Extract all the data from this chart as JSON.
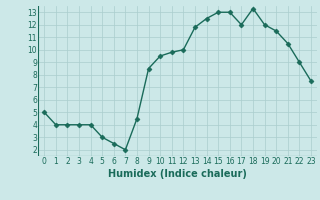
{
  "x": [
    0,
    1,
    2,
    3,
    4,
    5,
    6,
    7,
    8,
    9,
    10,
    11,
    12,
    13,
    14,
    15,
    16,
    17,
    18,
    19,
    20,
    21,
    22,
    23
  ],
  "y": [
    5,
    4,
    4,
    4,
    4,
    3,
    2.5,
    2,
    4.5,
    8.5,
    9.5,
    9.8,
    10,
    11.8,
    12.5,
    13,
    13,
    12,
    13.3,
    12,
    11.5,
    10.5,
    9,
    7.5
  ],
  "line_color": "#1a6b5a",
  "marker": "D",
  "marker_size": 2.5,
  "bg_color": "#cce8e8",
  "grid_color": "#aacece",
  "xlabel": "Humidex (Indice chaleur)",
  "xlim": [
    -0.5,
    23.5
  ],
  "ylim": [
    1.5,
    13.5
  ],
  "yticks": [
    2,
    3,
    4,
    5,
    6,
    7,
    8,
    9,
    10,
    11,
    12,
    13
  ],
  "xticks": [
    0,
    1,
    2,
    3,
    4,
    5,
    6,
    7,
    8,
    9,
    10,
    11,
    12,
    13,
    14,
    15,
    16,
    17,
    18,
    19,
    20,
    21,
    22,
    23
  ],
  "tick_fontsize": 5.5,
  "xlabel_fontsize": 7,
  "linewidth": 1.0
}
